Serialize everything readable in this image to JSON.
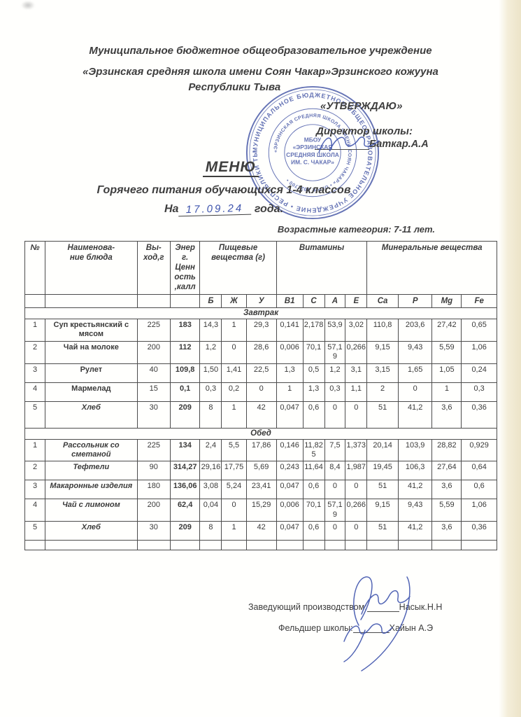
{
  "colors": {
    "ink_blue": "#3f54ad",
    "stamp_blue": "#4b5cab",
    "paper_edge": "#ebe0bd",
    "text": "#3e3e3e"
  },
  "header": {
    "line1": "Муниципальное бюджетное общеобразовательное учреждение",
    "line2": "«Эрзинская средняя школа  имени Соян Чакар»Эрзинского кожууна",
    "line3": "Республики Тыва"
  },
  "approval": {
    "approve_label": "«УТВЕРЖДАЮ»",
    "director_label": "Директор  школы:",
    "director_name": "Баткар.А.А"
  },
  "stamp": {
    "ring1": "МУНИЦИПАЛЬНОЕ БЮДЖЕТНОЕ ОБЩЕОБРАЗОВАТЕЛЬНОЕ УЧРЕЖДЕНИЕ • РЕСПУБЛИКИ ТЫВА •",
    "ring2": "«ЭРЗИНСКАЯ СРЕДНЯЯ ШКОЛА ИМЕНИ СОЯН ЧАКАР» • ОГРН: 1021700 •",
    "center_lines": [
      "МБОУ",
      "«ЭРЗИНСКАЯ",
      "СРЕДНЯЯ ШКОЛА",
      "ИМ. С. ЧАКАР»"
    ]
  },
  "title_block": {
    "menu": "МЕНЮ",
    "subtitle": "Горячего питания обучающихся 1-4 классов",
    "date_prefix": "На",
    "date_value": "17.09.24",
    "date_suffix": "года.",
    "age_note": "Возрастные категория: 7-11 лет."
  },
  "table": {
    "col_headers": [
      "№",
      "Наименова-\nние блюда",
      "Вы-\nход,г",
      "Энер\nг.\nЦенн\nость\n,калл"
    ],
    "group_headers": [
      "Пищевые\nвещества (г)",
      "Витамины",
      "Минеральные вещества"
    ],
    "sub_headers": [
      "Б",
      "Ж",
      "У",
      "B1",
      "C",
      "A",
      "E",
      "Ca",
      "P",
      "Mg",
      "Fe"
    ],
    "sections": [
      {
        "name": "Завтрак",
        "rows": [
          [
            "1",
            "Суп крестьянский с мясом",
            "225",
            "183",
            "14,3",
            "1",
            "29,3",
            "0,141",
            "2,178",
            "53,9",
            "3,02",
            "110,8",
            "203,6",
            "27,42",
            "0,65"
          ],
          [
            "2",
            "Чай на молоке",
            "200",
            "112",
            "1,2",
            "0",
            "28,6",
            "0,006",
            "70,1",
            "57,19",
            "0,266",
            "9,15",
            "9,43",
            "5,59",
            "1,06"
          ],
          [
            "3",
            "Рулет",
            "40",
            "109,8",
            "1,50",
            "1,41",
            "22,5",
            "1,3",
            "0,5",
            "1,2",
            "3,1",
            "3,15",
            "1,65",
            "1,05",
            "0,24"
          ],
          [
            "4",
            "Мармелад",
            "15",
            "0,1",
            "0,3",
            "0,2",
            "0",
            "1",
            "1,3",
            "0,3",
            "1,1",
            "2",
            "0",
            "1",
            "0,3"
          ],
          [
            "5",
            "Хлеб",
            "30",
            "209",
            "8",
            "1",
            "42",
            "0,047",
            "0,6",
            "0",
            "0",
            "51",
            "41,2",
            "3,6",
            "0,36"
          ]
        ]
      },
      {
        "name": "Обед",
        "rows": [
          [
            "1",
            "Рассольник со сметаной",
            "225",
            "134",
            "2,4",
            "5,5",
            "17,86",
            "0,146",
            "11,825",
            "7,5",
            "1,373",
            "20,14",
            "103,9",
            "28,82",
            "0,929"
          ],
          [
            "2",
            "Тефтели",
            "90",
            "314,27",
            "29,16",
            "17,75",
            "5,69",
            "0,243",
            "11,64",
            "8,4",
            "1,987",
            "19,45",
            "106,3",
            "27,64",
            "0,64"
          ],
          [
            "3",
            "Макаронные изделия",
            "180",
            "136,06",
            "3,08",
            "5,24",
            "23,41",
            "0,047",
            "0,6",
            "0",
            "0",
            "51",
            "41,2",
            "3,6",
            "0,6"
          ],
          [
            "4",
            "Чай с лимоном",
            "200",
            "62,4",
            "0,04",
            "0",
            "15,29",
            "0,006",
            "70,1",
            "57,19",
            "0,266",
            "9,15",
            "9,43",
            "5,59",
            "1,06"
          ],
          [
            "5",
            "Хлеб",
            "30",
            "209",
            "8",
            "1",
            "42",
            "0,047",
            "0,6",
            "0",
            "0",
            "51",
            "41,2",
            "3,6",
            "0,36"
          ]
        ]
      }
    ]
  },
  "signatures": {
    "line1_label": "Заведующий производством:",
    "line1_name": "Насык.Н.Н",
    "line2_label": "Фельдшер школы:",
    "line2_name": "Хайын А.Э"
  }
}
